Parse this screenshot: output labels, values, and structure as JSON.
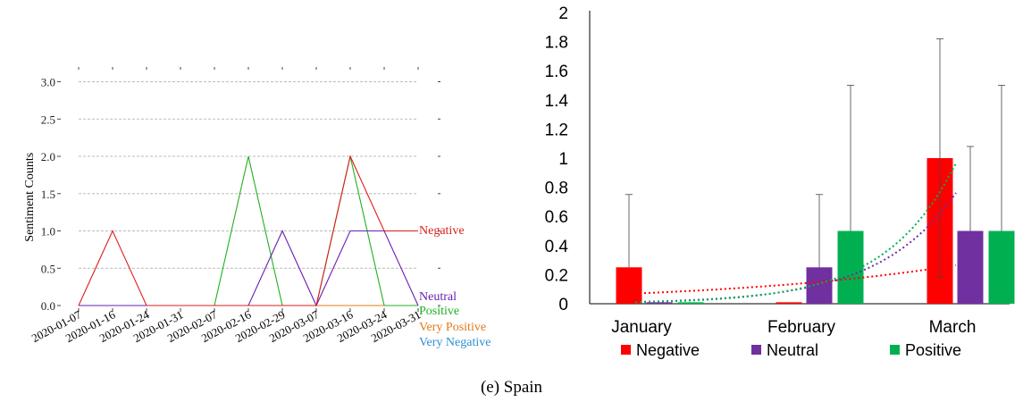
{
  "caption": "(e) Spain",
  "colors": {
    "negative": "#dc1e1e",
    "neutral": "#6a1fb0",
    "positive": "#1fb01f",
    "very_positive": "#e07b1a",
    "very_negative": "#2e8fd0",
    "bar_negative": "#ff0000",
    "bar_neutral": "#7030a0",
    "bar_positive": "#00b050"
  },
  "chart_data": [
    {
      "type": "line",
      "title": "",
      "ylabel": "Sentiment Counts",
      "xlabel": "",
      "x": [
        "2020-01-07",
        "2020-01-16",
        "2020-01-24",
        "2020-01-31",
        "2020-02-07",
        "2020-02-16",
        "2020-02-29",
        "2020-03-07",
        "2020-03-16",
        "2020-03-24",
        "2020-03-31"
      ],
      "y_ticks": [
        "0.0",
        "0.5",
        "1.0",
        "1.5",
        "2.0",
        "2.5",
        "3.0"
      ],
      "ylim": [
        0,
        3.0
      ],
      "grid": "horizontal dashed",
      "series": [
        {
          "name": "Negative",
          "values": [
            0,
            1,
            0,
            0,
            0,
            0,
            0,
            0,
            2,
            1,
            1
          ]
        },
        {
          "name": "Neutral",
          "values": [
            0,
            0,
            0,
            0,
            0,
            0,
            1,
            0,
            1,
            1,
            0
          ]
        },
        {
          "name": "Positive",
          "values": [
            0,
            0,
            0,
            0,
            0,
            2,
            0,
            0,
            2,
            0,
            0
          ]
        },
        {
          "name": "Very Positive",
          "values": [
            0,
            0,
            0,
            0,
            0,
            0,
            0,
            0,
            0,
            0,
            0
          ]
        },
        {
          "name": "Very Negative",
          "values": [
            0,
            0,
            0,
            0,
            0,
            0,
            0,
            0,
            0,
            0,
            0
          ]
        }
      ],
      "legend": "inline labels at right end of lines"
    },
    {
      "type": "bar",
      "title": "",
      "xlabel": "",
      "ylabel": "",
      "categories": [
        "January",
        "February",
        "March"
      ],
      "y_ticks": [
        "0",
        "0.2",
        "0.4",
        "0.6",
        "0.8",
        "1",
        "1.2",
        "1.4",
        "1.6",
        "1.8",
        "2"
      ],
      "ylim": [
        0,
        2
      ],
      "series": [
        {
          "name": "Negative",
          "values": [
            0.25,
            0.01,
            1.0
          ],
          "error_upper": [
            0.75,
            0.0,
            1.82
          ],
          "error_lower": [
            0.0,
            0.0,
            0.18
          ]
        },
        {
          "name": "Neutral",
          "values": [
            0.01,
            0.25,
            0.5
          ],
          "error_upper": [
            0.0,
            0.75,
            1.08
          ],
          "error_lower": [
            0.0,
            0.0,
            0.0
          ]
        },
        {
          "name": "Positive",
          "values": [
            0.01,
            0.5,
            0.5
          ],
          "error_upper": [
            0.0,
            1.5,
            1.5
          ],
          "error_lower": [
            0.0,
            0.0,
            0.0
          ]
        }
      ],
      "trendlines": "dotted exponential trendline per series",
      "legend": "bottom"
    }
  ]
}
